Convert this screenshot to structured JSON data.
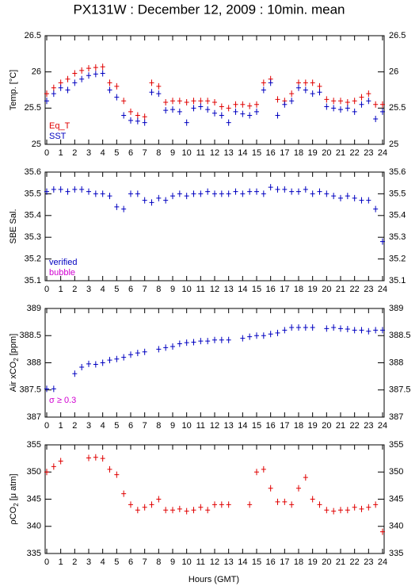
{
  "title": "PX131W : December 12, 2009 : 10min. mean",
  "x_label": "Hours (GMT)",
  "chart_data": [
    {
      "type": "scatter",
      "y_label": [
        "Temp. [°C]"
      ],
      "xlim": [
        0,
        24
      ],
      "ylim": [
        25,
        26.5
      ],
      "yticks": [
        25,
        25.5,
        26,
        26.5
      ],
      "xticks": [
        0,
        1,
        2,
        3,
        4,
        5,
        6,
        7,
        8,
        9,
        10,
        11,
        12,
        13,
        14,
        15,
        16,
        17,
        18,
        19,
        20,
        21,
        22,
        23,
        24
      ],
      "x": [
        0,
        0.5,
        1,
        1.5,
        2,
        2.5,
        3,
        3.5,
        4,
        4.5,
        5,
        5.5,
        6,
        6.5,
        7,
        7.5,
        8,
        8.5,
        9,
        9.5,
        10,
        10.5,
        11,
        11.5,
        12,
        12.5,
        13,
        13.5,
        14,
        14.5,
        15,
        15.5,
        16,
        16.5,
        17,
        17.5,
        18,
        18.5,
        19,
        19.5,
        20,
        20.5,
        21,
        21.5,
        22,
        22.5,
        23,
        23.5,
        24
      ],
      "series": [
        {
          "name": "Eq_T",
          "color": "#e00000",
          "values": [
            25.7,
            25.78,
            25.85,
            25.9,
            25.98,
            26.02,
            26.05,
            26.06,
            26.07,
            25.85,
            25.8,
            25.6,
            25.45,
            25.4,
            25.38,
            25.85,
            25.8,
            25.58,
            25.6,
            25.6,
            25.58,
            25.6,
            25.6,
            25.6,
            25.58,
            25.52,
            25.5,
            25.55,
            25.55,
            25.53,
            25.55,
            25.85,
            25.9,
            25.62,
            25.6,
            25.7,
            25.85,
            25.85,
            25.85,
            25.8,
            25.62,
            25.6,
            25.6,
            25.58,
            25.6,
            25.65,
            25.7,
            25.55,
            25.55
          ]
        },
        {
          "name": "SST",
          "color": "#0000c0",
          "values": [
            25.6,
            25.7,
            25.78,
            25.75,
            25.85,
            25.9,
            25.95,
            25.97,
            25.98,
            25.75,
            25.65,
            25.4,
            25.33,
            25.32,
            25.3,
            25.72,
            25.7,
            25.47,
            25.48,
            25.45,
            25.3,
            25.5,
            25.52,
            25.48,
            25.43,
            25.4,
            25.3,
            25.45,
            25.42,
            25.4,
            25.45,
            25.75,
            25.85,
            25.4,
            25.55,
            25.6,
            25.78,
            25.75,
            25.7,
            25.72,
            25.52,
            25.5,
            25.48,
            25.5,
            25.45,
            25.55,
            25.6,
            25.35,
            25.45
          ]
        }
      ]
    },
    {
      "type": "scatter",
      "y_label": [
        "SBE Sal."
      ],
      "xlim": [
        0,
        24
      ],
      "ylim": [
        35.1,
        35.6
      ],
      "yticks": [
        35.1,
        35.2,
        35.3,
        35.4,
        35.5,
        35.6
      ],
      "xticks": [
        0,
        1,
        2,
        3,
        4,
        5,
        6,
        7,
        8,
        9,
        10,
        11,
        12,
        13,
        14,
        15,
        16,
        17,
        18,
        19,
        20,
        21,
        22,
        23,
        24
      ],
      "x": [
        0,
        0.5,
        1,
        1.5,
        2,
        2.5,
        3,
        3.5,
        4,
        4.5,
        5,
        5.5,
        6,
        6.5,
        7,
        7.5,
        8,
        8.5,
        9,
        9.5,
        10,
        10.5,
        11,
        11.5,
        12,
        12.5,
        13,
        13.5,
        14,
        14.5,
        15,
        15.5,
        16,
        16.5,
        17,
        17.5,
        18,
        18.5,
        19,
        19.5,
        20,
        20.5,
        21,
        21.5,
        22,
        22.5,
        23,
        23.5,
        24
      ],
      "series": [
        {
          "name": "verified",
          "color": "#0000c0",
          "values": [
            35.51,
            35.52,
            35.52,
            35.51,
            35.52,
            35.52,
            35.51,
            35.5,
            35.5,
            35.49,
            35.44,
            35.43,
            35.5,
            35.5,
            35.47,
            35.46,
            35.48,
            35.47,
            35.49,
            35.5,
            35.49,
            35.5,
            35.5,
            35.51,
            35.5,
            35.5,
            35.5,
            35.51,
            35.5,
            35.51,
            35.51,
            35.5,
            35.53,
            35.52,
            35.52,
            35.51,
            35.51,
            35.52,
            35.5,
            35.51,
            35.5,
            35.49,
            35.48,
            35.49,
            35.48,
            35.47,
            35.47,
            35.43,
            35.28
          ]
        },
        {
          "name": "bubble",
          "color": "#d000d0",
          "values": [
            null,
            null,
            null,
            null,
            null,
            null,
            null,
            null,
            null,
            null,
            null,
            null,
            null,
            null,
            null,
            null,
            null,
            null,
            null,
            null,
            null,
            null,
            null,
            null,
            null,
            null,
            null,
            null,
            null,
            null,
            null,
            null,
            null,
            null,
            null,
            null,
            null,
            null,
            null,
            null,
            null,
            null,
            null,
            null,
            null,
            null,
            null,
            null,
            null
          ]
        }
      ]
    },
    {
      "type": "scatter",
      "y_label": [
        "Air xCO",
        "2",
        " [ppm]"
      ],
      "annotation": "σ ≥ 0.3",
      "xlim": [
        0,
        24
      ],
      "ylim": [
        387,
        389
      ],
      "yticks": [
        387,
        387.5,
        388,
        388.5,
        389
      ],
      "xticks": [
        0,
        1,
        2,
        3,
        4,
        5,
        6,
        7,
        8,
        9,
        10,
        11,
        12,
        13,
        14,
        15,
        16,
        17,
        18,
        19,
        20,
        21,
        22,
        23,
        24
      ],
      "x": [
        0,
        0.5,
        1,
        1.5,
        2,
        2.5,
        3,
        3.5,
        4,
        4.5,
        5,
        5.5,
        6,
        6.5,
        7,
        7.5,
        8,
        8.5,
        9,
        9.5,
        10,
        10.5,
        11,
        11.5,
        12,
        12.5,
        13,
        13.5,
        14,
        14.5,
        15,
        15.5,
        16,
        16.5,
        17,
        17.5,
        18,
        18.5,
        19,
        19.5,
        20,
        20.5,
        21,
        21.5,
        22,
        22.5,
        23,
        23.5,
        24
      ],
      "series": [
        {
          "name": "Air xCO2",
          "color": "#0000c0",
          "values": [
            387.52,
            387.52,
            null,
            null,
            387.8,
            387.92,
            387.98,
            387.97,
            388.0,
            388.05,
            388.07,
            388.1,
            388.15,
            388.18,
            388.2,
            null,
            388.25,
            388.28,
            388.3,
            388.35,
            388.37,
            388.38,
            388.4,
            388.4,
            388.42,
            388.42,
            388.42,
            null,
            388.45,
            388.48,
            388.5,
            388.5,
            388.53,
            388.55,
            388.6,
            388.65,
            388.65,
            388.65,
            388.65,
            null,
            388.63,
            388.65,
            388.63,
            388.62,
            388.6,
            388.6,
            388.58,
            388.6,
            388.6
          ]
        }
      ]
    },
    {
      "type": "scatter",
      "y_label": [
        "ρCO",
        "2",
        " [μ atm]"
      ],
      "xlim": [
        0,
        24
      ],
      "ylim": [
        335,
        355
      ],
      "yticks": [
        335,
        340,
        345,
        350,
        355
      ],
      "xticks": [
        0,
        1,
        2,
        3,
        4,
        5,
        6,
        7,
        8,
        9,
        10,
        11,
        12,
        13,
        14,
        15,
        16,
        17,
        18,
        19,
        20,
        21,
        22,
        23,
        24
      ],
      "x": [
        0,
        0.5,
        1,
        1.5,
        2,
        2.5,
        3,
        3.5,
        4,
        4.5,
        5,
        5.5,
        6,
        6.5,
        7,
        7.5,
        8,
        8.5,
        9,
        9.5,
        10,
        10.5,
        11,
        11.5,
        12,
        12.5,
        13,
        13.5,
        14,
        14.5,
        15,
        15.5,
        16,
        16.5,
        17,
        17.5,
        18,
        18.5,
        19,
        19.5,
        20,
        20.5,
        21,
        21.5,
        22,
        22.5,
        23,
        23.5,
        24
      ],
      "series": [
        {
          "name": "pCO2",
          "color": "#e00000",
          "values": [
            350,
            351,
            352,
            null,
            null,
            null,
            352.6,
            352.7,
            352.5,
            350.5,
            349.5,
            346,
            344,
            343,
            343.5,
            344,
            345,
            343,
            343,
            343.2,
            342.8,
            343,
            343.5,
            343,
            344,
            344,
            344,
            null,
            null,
            344,
            350,
            350.5,
            347,
            344.5,
            344.5,
            344,
            347,
            349,
            345,
            344,
            343,
            342.8,
            343,
            343,
            343.5,
            343.2,
            343.5,
            344,
            339
          ]
        }
      ]
    }
  ]
}
